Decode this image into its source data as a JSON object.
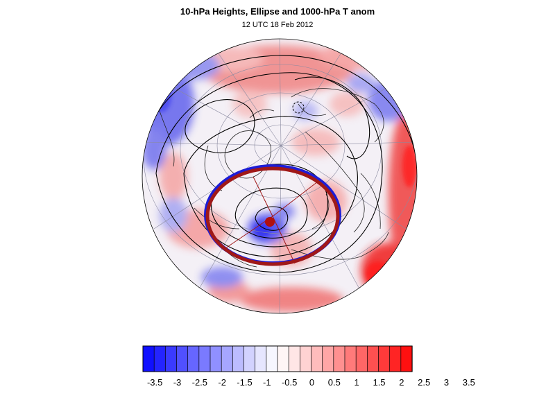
{
  "header": {
    "title": "10-hPa Heights, Ellipse and 1000-hPa T anom",
    "subtitle": "12 UTC 18 Feb 2012"
  },
  "map": {
    "projection": "orthographic-polar-north",
    "fill_field": "1000-hPa temperature anomaly",
    "contour_field": "10-hPa geopotential height",
    "overlay": "vortex ellipse with centroid and axes",
    "ellipse_color": "#a01818",
    "ellipse_inner_edge_color": "#1d1dd6",
    "contour_color": "#000000",
    "gridline_color": "#8a8aa0"
  },
  "colorbar": {
    "colors": [
      "#1010ff",
      "#2424ff",
      "#3a3aff",
      "#5050ff",
      "#6666ff",
      "#7a7aff",
      "#9090ff",
      "#a6a6ff",
      "#bcbcff",
      "#d2d2ff",
      "#e6e6ff",
      "#f6f6ff",
      "#fff6f6",
      "#ffe6e6",
      "#ffd2d2",
      "#ffbcbc",
      "#ffa6a6",
      "#ff9090",
      "#ff7a7a",
      "#ff6666",
      "#ff5050",
      "#ff3a3a",
      "#ff2424",
      "#ff1010"
    ],
    "labels": [
      "-3.5",
      "-3",
      "-2.5",
      "-2",
      "-1.5",
      "-1",
      "-0.5",
      "0",
      "0.5",
      "1",
      "1.5",
      "2",
      "2.5",
      "3",
      "3.5"
    ]
  }
}
